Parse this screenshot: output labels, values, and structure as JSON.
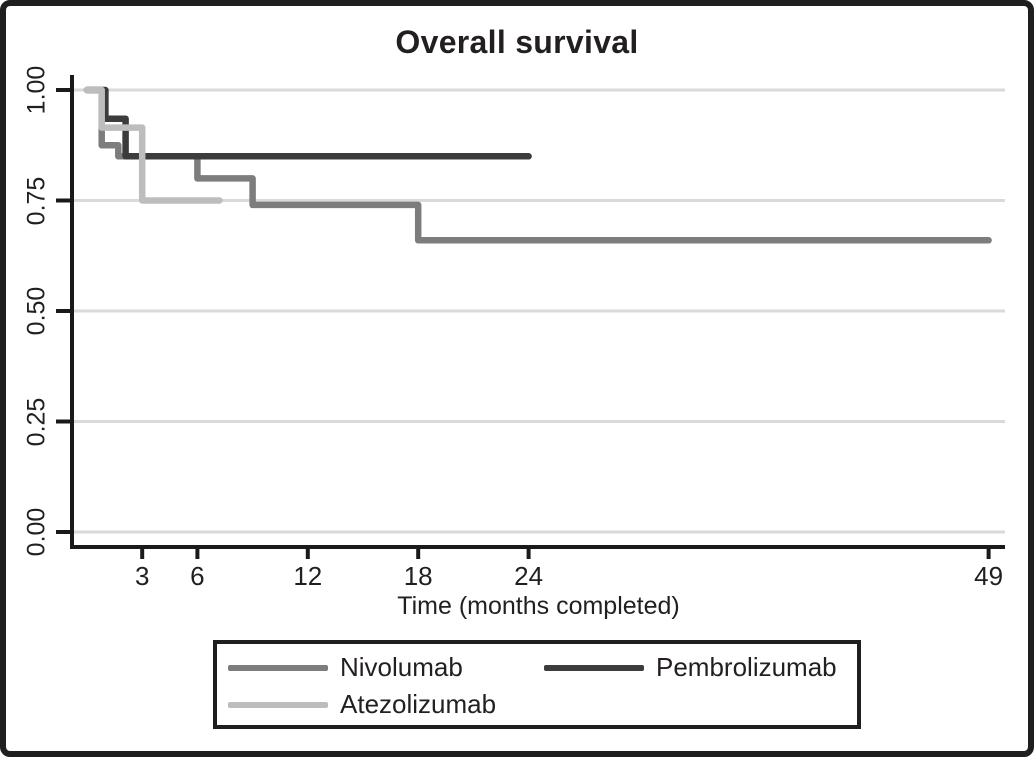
{
  "figure": {
    "title": "Overall survival",
    "xlabel": "Time (months completed)"
  },
  "chart_data": {
    "type": "line",
    "subtype": "kaplan-meier-step-survival",
    "title": "Overall survival",
    "xlabel": "Time (months completed)",
    "ylabel": "",
    "xlim": [
      0,
      50
    ],
    "ylim": [
      0.0,
      1.0
    ],
    "grid": "horizontal-only",
    "legend_position": "bottom-boxed",
    "xticks": [
      {
        "value": 3,
        "label": "3"
      },
      {
        "value": 6,
        "label": "6"
      },
      {
        "value": 12,
        "label": "12"
      },
      {
        "value": 18,
        "label": "18"
      },
      {
        "value": 24,
        "label": "24"
      },
      {
        "value": 49,
        "label": "49"
      }
    ],
    "yticks": [
      {
        "value": 0.0,
        "label": "0.00"
      },
      {
        "value": 0.25,
        "label": "0.25"
      },
      {
        "value": 0.5,
        "label": "0.50"
      },
      {
        "value": 0.75,
        "label": "0.75"
      },
      {
        "value": 1.0,
        "label": "1.00"
      }
    ],
    "series": [
      {
        "name": "Nivolumab",
        "color": "#7d7d7d",
        "points": [
          [
            0,
            1.0
          ],
          [
            0.8,
            1.0
          ],
          [
            0.8,
            0.875
          ],
          [
            1.7,
            0.875
          ],
          [
            1.7,
            0.85
          ],
          [
            6,
            0.85
          ],
          [
            6,
            0.8
          ],
          [
            9,
            0.8
          ],
          [
            9,
            0.74
          ],
          [
            18,
            0.74
          ],
          [
            18,
            0.66
          ],
          [
            49,
            0.66
          ]
        ]
      },
      {
        "name": "Pembrolizumab",
        "color": "#3c3c3c",
        "points": [
          [
            0,
            1.0
          ],
          [
            1,
            1.0
          ],
          [
            1,
            0.935
          ],
          [
            2.1,
            0.935
          ],
          [
            2.1,
            0.85
          ],
          [
            24,
            0.85
          ]
        ]
      },
      {
        "name": "Atezolizumab",
        "color": "#bdbdbd",
        "points": [
          [
            0,
            1.0
          ],
          [
            0.8,
            1.0
          ],
          [
            0.8,
            0.915
          ],
          [
            3,
            0.915
          ],
          [
            3,
            0.75
          ],
          [
            7.2,
            0.75
          ]
        ]
      }
    ]
  },
  "colors": {
    "axis": "#1a1a1a",
    "gridline": "#dadada",
    "frame_border": "#1f1f1f",
    "background": "#ffffff",
    "text": "#231f20"
  }
}
